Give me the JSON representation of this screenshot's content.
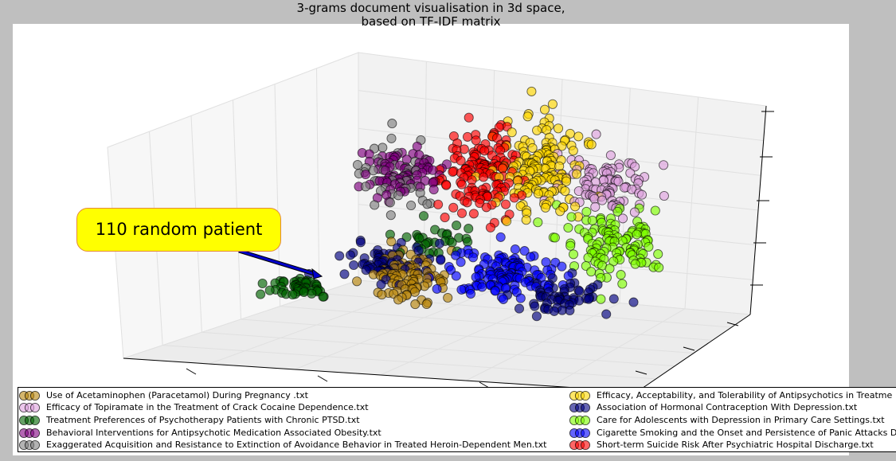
{
  "chart_data": {
    "type": "scatter",
    "projection": "3d",
    "title": "3-grams document visualisation in 3d space, based on TF-IDF matrix",
    "title_lines": [
      "3-grams document visualisation in 3d space,",
      "based on TF-IDF matrix"
    ],
    "grid": true,
    "legend_position": "bottom",
    "annotation": {
      "text": "110 random patient",
      "color": "#ffff00",
      "arrow_color": "#0000cc"
    },
    "series": [
      {
        "name": "Use of Acetaminophen (Paracetamol) During Pregnancy .txt",
        "color": "#b8860b"
      },
      {
        "name": "Efficacy of Topiramate in the Treatment of Crack Cocaine Dependence.txt",
        "color": "#dda0dd"
      },
      {
        "name": "Treatment Preferences of Psychotherapy Patients with Chronic PTSD.txt",
        "color": "#006400"
      },
      {
        "name": "Behavioral Interventions for Antipsychotic Medication Associated Obesity.txt",
        "color": "#800080"
      },
      {
        "name": "Exaggerated Acquisition and Resistance to Extinction of Avoidance Behavior in Treated Heroin-Dependent Men.txt",
        "color": "#808080"
      },
      {
        "name": "Efficacy, Acceptability, and Tolerability of Antipsychotics in Treatment-Resistant Schizophrenia.txt",
        "color": "#ffd700"
      },
      {
        "name": "Association of Hormonal Contraception With Depression.txt",
        "color": "#000080"
      },
      {
        "name": "Care for Adolescents with Depression in Primary Care Settings.txt",
        "color": "#7fff00"
      },
      {
        "name": "Cigarette Smoking and the Onset and Persistence of Panic Attacks During Mid-Adulthood.txt",
        "color": "#0000ff"
      },
      {
        "name": "Short-term Suicide Risk After Psychiatric Hospital Discharge.txt",
        "color": "#ff0000"
      }
    ],
    "legend_visible_labels": [
      "Use of Acetaminophen (Paracetamol) During Pregnancy .txt",
      "Efficacy of Topiramate in the Treatment of Crack Cocaine Dependence.txt",
      "Treatment Preferences of Psychotherapy Patients with Chronic PTSD.txt",
      "Behavioral Interventions for Antipsychotic Medication Associated Obesity.txt",
      "Exaggerated Acquisition and Resistance to Extinction of Avoidance Behavior in Treated Heroin-Dependent Men.txt",
      "Efficacy, Acceptability, and Tolerability of Antipsychotics in Treatme",
      "Association of Hormonal Contraception With Depression.txt",
      "Care for Adolescents with Depression in Primary Care Settings.txt",
      "Cigarette Smoking and the Onset and Persistence of Panic Attacks D",
      "Short-term Suicide Risk After Psychiatric Hospital Discharge.txt"
    ]
  }
}
